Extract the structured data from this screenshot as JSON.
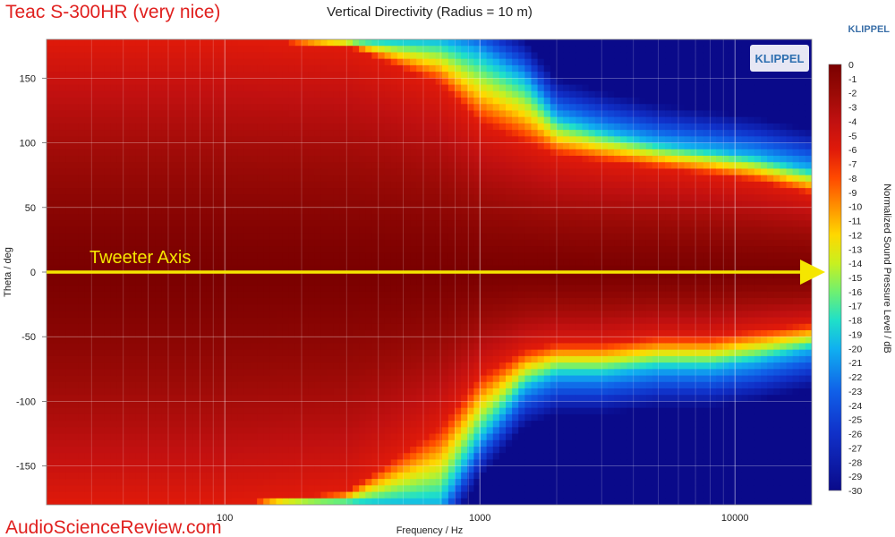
{
  "header": {
    "speaker_title": "Teac S-300HR (very nice)",
    "klippel_label": "KLIPPEL",
    "watermark": "AudioScienceReview.com"
  },
  "colors": {
    "speaker_title": "#e0201e",
    "watermark": "#e0201e",
    "klippel_label": "#3a6fa8",
    "annotation": "#f5e600",
    "plot_edge_shading": "#f3f3f3"
  },
  "chart_data": {
    "type": "heatmap",
    "title": "Vertical Directivity (Radius = 10 m)",
    "xlabel": "Frequency / Hz",
    "ylabel": "Theta / deg",
    "colorbar_label": "Normalized Sound Pressure Level / dB",
    "x_scale": "log",
    "xlim": [
      20,
      20000
    ],
    "ylim": [
      -180,
      180
    ],
    "x_ticks": [
      {
        "value": 100,
        "label": "100"
      },
      {
        "value": 1000,
        "label": "1000"
      },
      {
        "value": 10000,
        "label": "10000"
      }
    ],
    "y_ticks": [
      {
        "value": 150,
        "label": "150"
      },
      {
        "value": 100,
        "label": "100"
      },
      {
        "value": 50,
        "label": "50"
      },
      {
        "value": 0,
        "label": "0"
      },
      {
        "value": -50,
        "label": "-50"
      },
      {
        "value": -100,
        "label": "-100"
      },
      {
        "value": -150,
        "label": "-150"
      }
    ],
    "colorbar_range": [
      -30,
      0
    ],
    "colorbar_ticks": [
      "0",
      "-1",
      "-2",
      "-3",
      "-4",
      "-5",
      "-6",
      "-7",
      "-8",
      "-9",
      "-10",
      "-11",
      "-12",
      "-13",
      "-14",
      "-15",
      "-16",
      "-17",
      "-18",
      "-19",
      "-20",
      "-21",
      "-22",
      "-23",
      "-24",
      "-25",
      "-26",
      "-27",
      "-28",
      "-29",
      "-30"
    ],
    "colorscale": [
      [
        0,
        "#7a0000"
      ],
      [
        -2,
        "#9a0a06"
      ],
      [
        -4,
        "#c01010"
      ],
      [
        -6,
        "#e01a0a"
      ],
      [
        -8,
        "#ff4a00"
      ],
      [
        -10,
        "#ff9000"
      ],
      [
        -12,
        "#ffd800"
      ],
      [
        -14,
        "#c8f020"
      ],
      [
        -16,
        "#70f070"
      ],
      [
        -18,
        "#20e0c8"
      ],
      [
        -20,
        "#10b0f0"
      ],
      [
        -23,
        "#1060e8"
      ],
      [
        -26,
        "#1030c8"
      ],
      [
        -30,
        "#0a0a8a"
      ]
    ],
    "grid": true,
    "annotation": {
      "text": "Tweeter Axis",
      "theta": 0
    },
    "directivity_profile": {
      "note": "angle (deg) at which level reaches given dB, by frequency",
      "frequency_hz": [
        20,
        100,
        300,
        700,
        1000,
        1500,
        2000,
        3000,
        5000,
        8000,
        12000,
        20000
      ],
      "upper_minus6db_angle": [
        180,
        180,
        175,
        145,
        115,
        100,
        90,
        85,
        80,
        75,
        70,
        60
      ],
      "upper_minus20db_angle": [
        180,
        180,
        180,
        180,
        170,
        150,
        120,
        110,
        100,
        95,
        90,
        80
      ],
      "lower_minus6db_angle": [
        -180,
        -180,
        -170,
        -120,
        -80,
        -60,
        -55,
        -55,
        -50,
        -50,
        -45,
        -40
      ],
      "lower_minus20db_angle": [
        -180,
        -180,
        -180,
        -180,
        -130,
        -90,
        -80,
        -80,
        -75,
        -75,
        -70,
        -60
      ]
    }
  }
}
